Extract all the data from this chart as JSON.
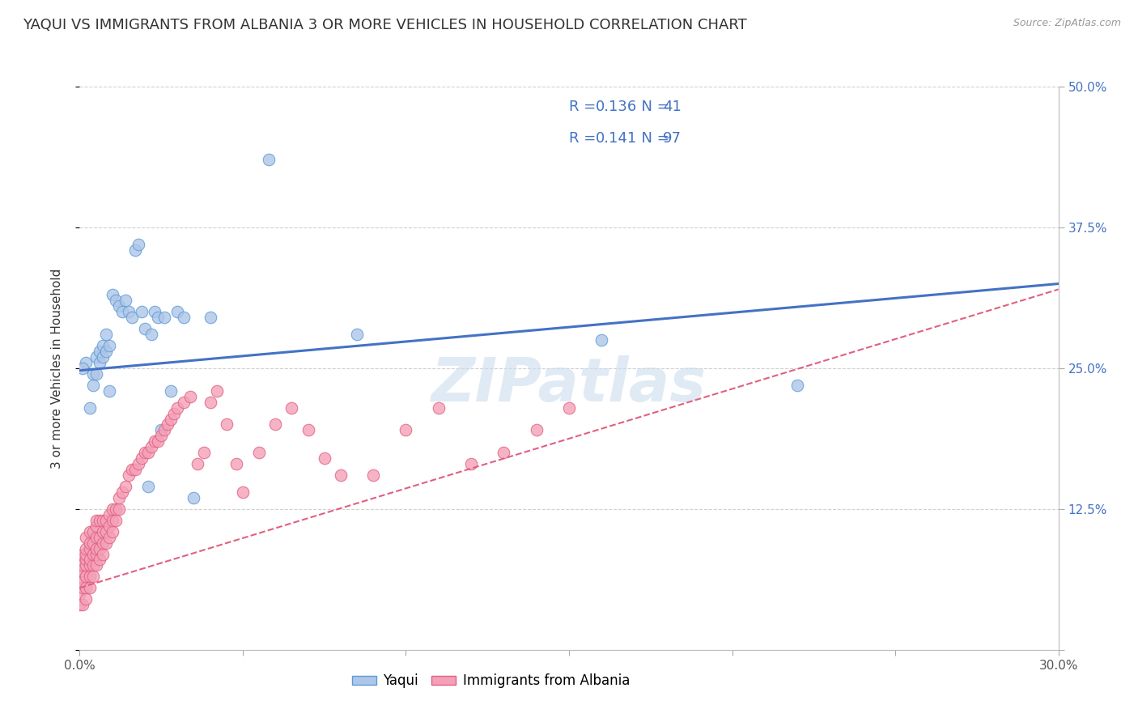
{
  "title": "YAQUI VS IMMIGRANTS FROM ALBANIA 3 OR MORE VEHICLES IN HOUSEHOLD CORRELATION CHART",
  "source_text": "Source: ZipAtlas.com",
  "ylabel": "3 or more Vehicles in Household",
  "xlim": [
    0.0,
    0.3
  ],
  "ylim": [
    0.0,
    0.5
  ],
  "watermark": "ZIPatlas",
  "legend_text_color": "#4472c4",
  "series": [
    {
      "name": "Yaqui",
      "color": "#aec6e8",
      "edge_color": "#5b9bd5",
      "line_color": "#4472c4",
      "line_style": "-",
      "line_width": 2.2,
      "points_x": [
        0.002,
        0.003,
        0.004,
        0.004,
        0.005,
        0.005,
        0.006,
        0.006,
        0.007,
        0.007,
        0.008,
        0.008,
        0.009,
        0.009,
        0.01,
        0.011,
        0.012,
        0.013,
        0.014,
        0.015,
        0.016,
        0.017,
        0.018,
        0.019,
        0.02,
        0.021,
        0.022,
        0.023,
        0.024,
        0.025,
        0.026,
        0.028,
        0.03,
        0.032,
        0.035,
        0.04,
        0.058,
        0.085,
        0.16,
        0.22,
        0.001
      ],
      "points_y": [
        0.255,
        0.215,
        0.235,
        0.245,
        0.245,
        0.26,
        0.255,
        0.265,
        0.26,
        0.27,
        0.265,
        0.28,
        0.27,
        0.23,
        0.315,
        0.31,
        0.305,
        0.3,
        0.31,
        0.3,
        0.295,
        0.355,
        0.36,
        0.3,
        0.285,
        0.145,
        0.28,
        0.3,
        0.295,
        0.195,
        0.295,
        0.23,
        0.3,
        0.295,
        0.135,
        0.295,
        0.435,
        0.28,
        0.275,
        0.235,
        0.25
      ],
      "trendline_x": [
        0.0,
        0.3
      ],
      "trendline_y": [
        0.248,
        0.325
      ]
    },
    {
      "name": "Immigrants from Albania",
      "color": "#f4a0b8",
      "edge_color": "#e06080",
      "line_color": "#e06080",
      "line_style": "--",
      "line_width": 1.5,
      "points_x": [
        0.0,
        0.0,
        0.0,
        0.0,
        0.001,
        0.001,
        0.001,
        0.001,
        0.001,
        0.001,
        0.002,
        0.002,
        0.002,
        0.002,
        0.002,
        0.002,
        0.002,
        0.002,
        0.003,
        0.003,
        0.003,
        0.003,
        0.003,
        0.003,
        0.003,
        0.004,
        0.004,
        0.004,
        0.004,
        0.004,
        0.005,
        0.005,
        0.005,
        0.005,
        0.005,
        0.005,
        0.006,
        0.006,
        0.006,
        0.006,
        0.007,
        0.007,
        0.007,
        0.007,
        0.008,
        0.008,
        0.008,
        0.009,
        0.009,
        0.009,
        0.01,
        0.01,
        0.01,
        0.011,
        0.011,
        0.012,
        0.012,
        0.013,
        0.014,
        0.015,
        0.016,
        0.017,
        0.018,
        0.019,
        0.02,
        0.021,
        0.022,
        0.023,
        0.024,
        0.025,
        0.026,
        0.027,
        0.028,
        0.029,
        0.03,
        0.032,
        0.034,
        0.036,
        0.038,
        0.04,
        0.042,
        0.045,
        0.048,
        0.05,
        0.055,
        0.06,
        0.065,
        0.07,
        0.075,
        0.08,
        0.09,
        0.1,
        0.11,
        0.12,
        0.13,
        0.14,
        0.15
      ],
      "points_y": [
        0.04,
        0.05,
        0.06,
        0.07,
        0.04,
        0.055,
        0.06,
        0.07,
        0.075,
        0.085,
        0.045,
        0.055,
        0.065,
        0.075,
        0.08,
        0.085,
        0.09,
        0.1,
        0.055,
        0.065,
        0.075,
        0.08,
        0.09,
        0.095,
        0.105,
        0.065,
        0.075,
        0.085,
        0.095,
        0.105,
        0.075,
        0.085,
        0.09,
        0.1,
        0.11,
        0.115,
        0.08,
        0.09,
        0.1,
        0.115,
        0.085,
        0.095,
        0.105,
        0.115,
        0.095,
        0.105,
        0.115,
        0.1,
        0.11,
        0.12,
        0.105,
        0.115,
        0.125,
        0.115,
        0.125,
        0.125,
        0.135,
        0.14,
        0.145,
        0.155,
        0.16,
        0.16,
        0.165,
        0.17,
        0.175,
        0.175,
        0.18,
        0.185,
        0.185,
        0.19,
        0.195,
        0.2,
        0.205,
        0.21,
        0.215,
        0.22,
        0.225,
        0.165,
        0.175,
        0.22,
        0.23,
        0.2,
        0.165,
        0.14,
        0.175,
        0.2,
        0.215,
        0.195,
        0.17,
        0.155,
        0.155,
        0.195,
        0.215,
        0.165,
        0.175,
        0.195,
        0.215
      ],
      "trendline_x": [
        0.0,
        0.3
      ],
      "trendline_y": [
        0.055,
        0.32
      ]
    }
  ],
  "background_color": "#ffffff",
  "grid_color": "#d0d0d0",
  "title_fontsize": 13,
  "axis_label_fontsize": 11,
  "tick_fontsize": 11,
  "right_tick_color": "#4472c4",
  "source_color": "#999999"
}
